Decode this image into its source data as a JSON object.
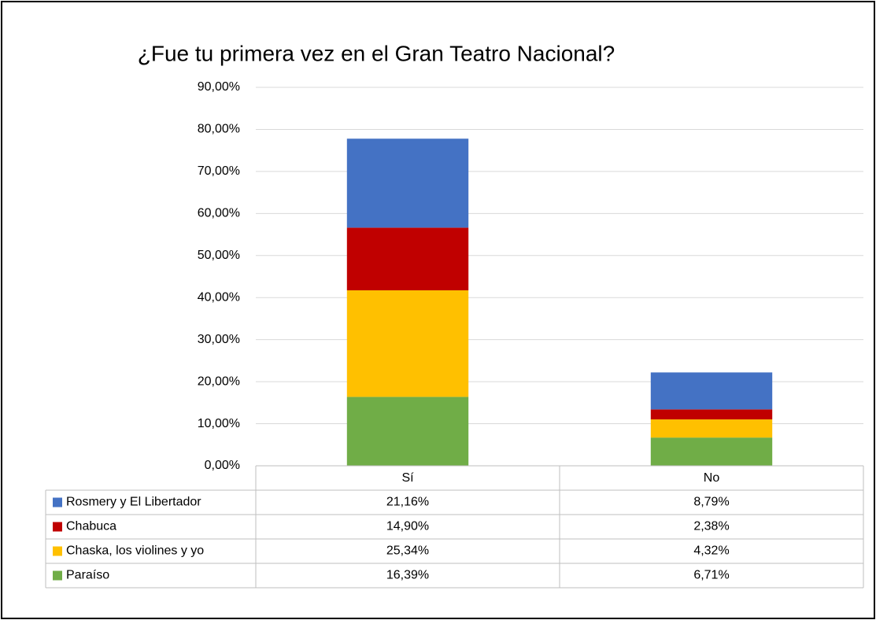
{
  "chart_data": {
    "type": "stacked_bar",
    "title": "¿Fue tu primera vez en el Gran Teatro Nacional?",
    "categories": [
      "Sí",
      "No"
    ],
    "series": [
      {
        "name": "Paraíso",
        "color": "#70ad47",
        "values": [
          16.39,
          6.71
        ],
        "value_labels": [
          "16,39%",
          "6,71%"
        ]
      },
      {
        "name": "Chaska, los violines y yo",
        "color": "#ffc000",
        "values": [
          25.34,
          4.32
        ],
        "value_labels": [
          "25,34%",
          "4,32%"
        ]
      },
      {
        "name": "Chabuca",
        "color": "#c00000",
        "values": [
          14.9,
          2.38
        ],
        "value_labels": [
          "14,90%",
          "2,38%"
        ]
      },
      {
        "name": "Rosmery y El Libertador",
        "color": "#4472c4",
        "values": [
          21.16,
          8.79
        ],
        "value_labels": [
          "21,16%",
          "8,79%"
        ]
      }
    ],
    "ylim": [
      0,
      90
    ],
    "yticks": [
      {
        "value": 0,
        "label": "0,00%"
      },
      {
        "value": 10,
        "label": "10,00%"
      },
      {
        "value": 20,
        "label": "20,00%"
      },
      {
        "value": 30,
        "label": "30,00%"
      },
      {
        "value": 40,
        "label": "40,00%"
      },
      {
        "value": 50,
        "label": "50,00%"
      },
      {
        "value": 60,
        "label": "60,00%"
      },
      {
        "value": 70,
        "label": "70,00%"
      },
      {
        "value": 80,
        "label": "80,00%"
      },
      {
        "value": 90,
        "label": "90,00%"
      }
    ],
    "grid": true,
    "data_table": true
  }
}
